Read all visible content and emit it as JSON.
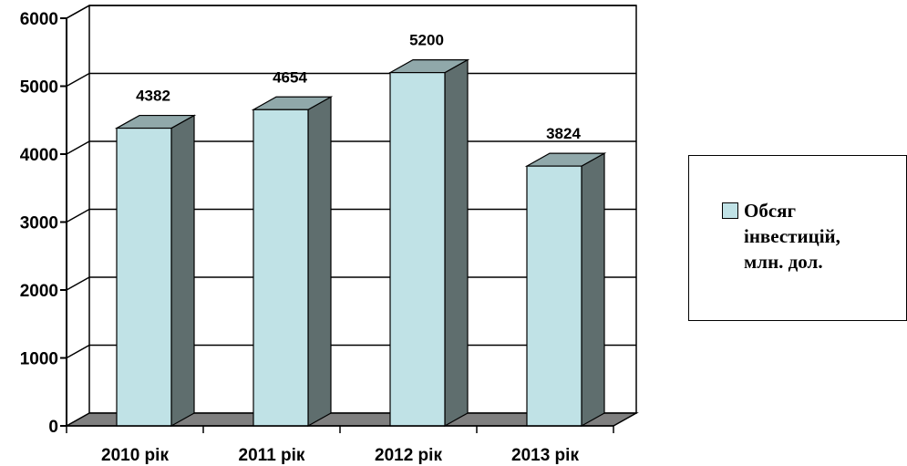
{
  "chart_data": {
    "type": "bar",
    "categories": [
      "2010 рік",
      "2011 рік",
      "2012 рік",
      "2013 рік"
    ],
    "series": [
      {
        "name": "Обсяг інвестицій, млн. дол.",
        "values": [
          4382,
          4654,
          5200,
          3824
        ]
      }
    ],
    "ylim": [
      0,
      6000
    ],
    "yticks": [
      0,
      1000,
      2000,
      3000,
      4000,
      5000,
      6000
    ],
    "grid": true,
    "legend_position": "right",
    "colors": {
      "bar_front": "#c0e2e6",
      "bar_side": "#5f6e6e",
      "bar_top": "#90a8aa",
      "floor": "#7f7f7f"
    }
  },
  "legend": {
    "label": "Обсяг\nінвестицій,\nмлн. дол."
  }
}
